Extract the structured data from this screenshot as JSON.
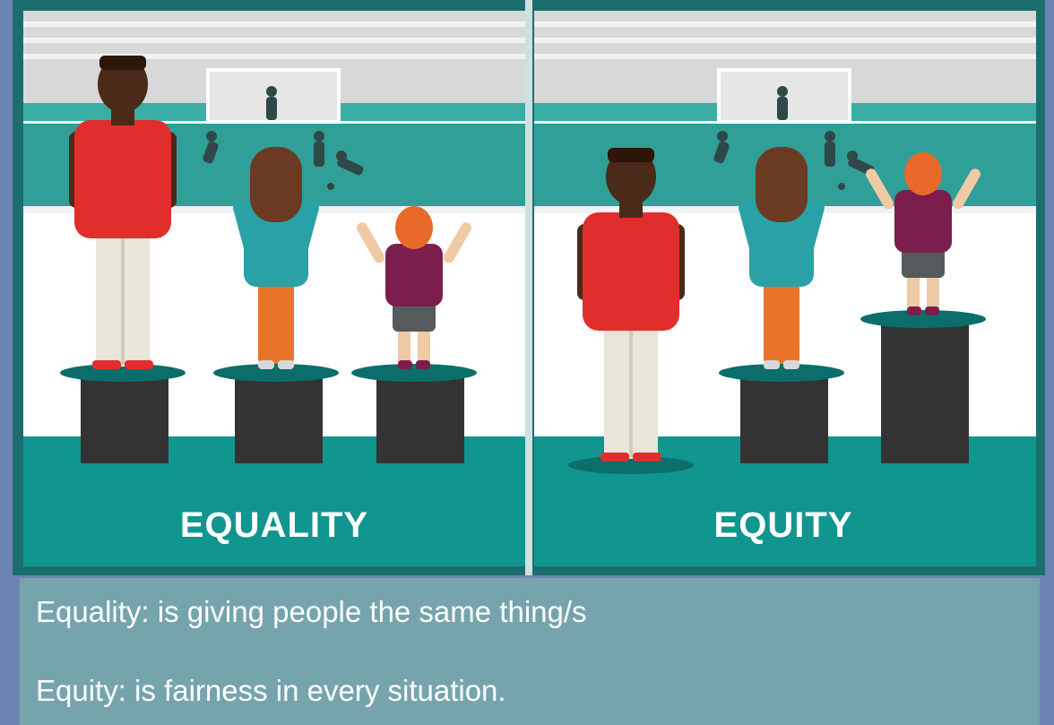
{
  "panels": [
    {
      "label": "EQUALITY"
    },
    {
      "label": "EQUITY"
    }
  ],
  "caption": {
    "lines": [
      "Equality: is giving people the same thing/s",
      "Equity: is fairness in every situation."
    ]
  }
}
